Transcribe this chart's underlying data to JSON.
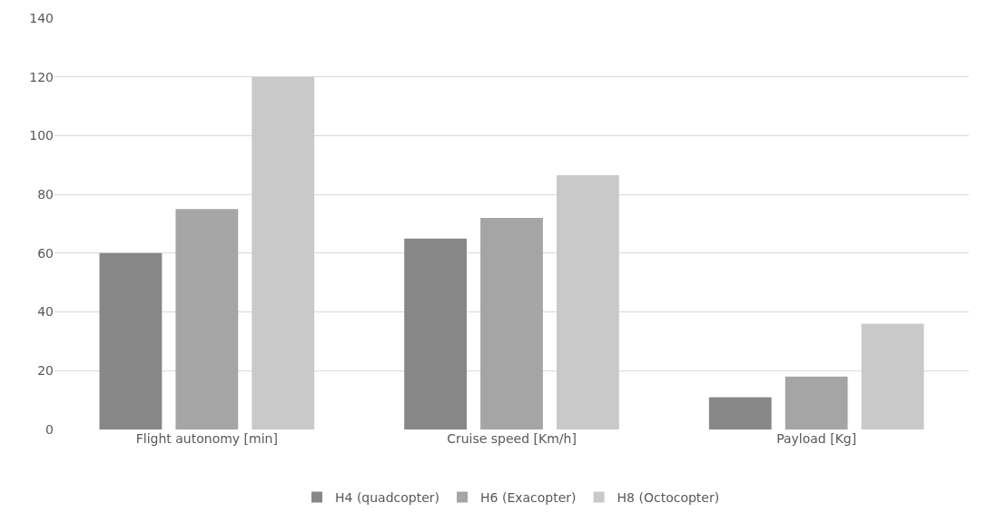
{
  "chart_data": {
    "type": "bar",
    "categories": [
      "Flight autonomy [min]",
      "Cruise speed [Km/h]",
      "Payload [Kg]"
    ],
    "series": [
      {
        "name": "H4 (quadcopter)",
        "color": "#878787",
        "values": [
          60,
          65,
          11
        ]
      },
      {
        "name": "H6 (Exacopter)",
        "color": "#a5a5a5",
        "values": [
          75,
          72,
          18
        ]
      },
      {
        "name": "H8 (Octocopter)",
        "color": "#c9c9c9",
        "values": [
          120,
          86.5,
          36
        ]
      }
    ],
    "ylim": [
      0,
      140
    ],
    "yticks": [
      0,
      20,
      40,
      60,
      80,
      100,
      120,
      140
    ],
    "grid": "y",
    "legend": "bottom"
  }
}
